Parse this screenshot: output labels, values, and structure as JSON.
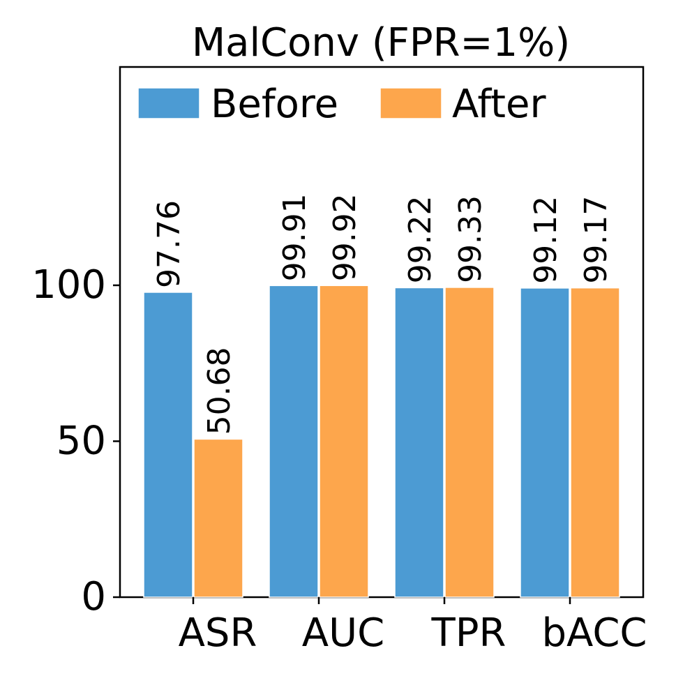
{
  "chart_data": {
    "type": "bar",
    "title": "MalConv (FPR=1%)",
    "xlabel": "",
    "ylabel": "",
    "categories": [
      "ASR",
      "AUC",
      "TPR",
      "bACC"
    ],
    "series": [
      {
        "name": "Before",
        "color": "#4c9bd3",
        "values": [
          97.76,
          99.91,
          99.22,
          99.12
        ],
        "labels": [
          "97.76",
          "99.91",
          "99.22",
          "99.12"
        ]
      },
      {
        "name": "After",
        "color": "#fda64c",
        "values": [
          50.68,
          99.92,
          99.33,
          99.17
        ],
        "labels": [
          "50.68",
          "99.92",
          "99.33",
          "99.17"
        ]
      }
    ],
    "yticks": [
      0,
      50,
      100
    ],
    "ylim": [
      0,
      170
    ],
    "grid": false,
    "legend_position": "top"
  }
}
